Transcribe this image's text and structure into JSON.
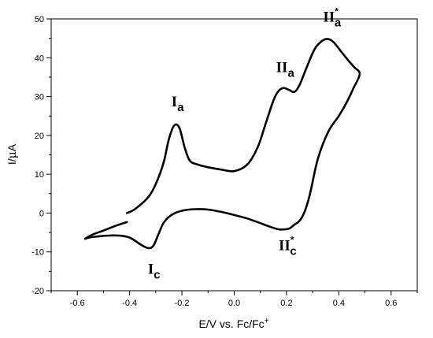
{
  "chart_data": {
    "type": "line",
    "title": "",
    "xlabel_parts": {
      "main": "E/V vs. Fc/Fc",
      "sup": "+"
    },
    "ylabel_parts": {
      "before": "I/",
      "mu": "μ",
      "after": "A"
    },
    "xlim": [
      -0.7,
      0.7
    ],
    "ylim": [
      -20,
      50
    ],
    "x_ticks": [
      -0.6,
      -0.4,
      -0.2,
      0.0,
      0.2,
      0.4,
      0.6
    ],
    "x_tick_labels": [
      "-0.6",
      "-0.4",
      "-0.2",
      "0.0",
      "0.2",
      "0.4",
      "0.6"
    ],
    "y_ticks": [
      -20,
      -10,
      0,
      10,
      20,
      30,
      40,
      50
    ],
    "y_tick_labels": [
      "-20",
      "-10",
      "0",
      "10",
      "20",
      "30",
      "40",
      "50"
    ],
    "grid": false,
    "legend": "none",
    "line_color": "#000000",
    "series": [
      {
        "x": [
          -0.41,
          -0.38,
          -0.33,
          -0.3,
          -0.27,
          -0.25,
          -0.23,
          -0.21,
          -0.19,
          -0.17,
          -0.14,
          -0.1,
          -0.05,
          0.0,
          0.05,
          0.09,
          0.12,
          0.15,
          0.17,
          0.19,
          0.21,
          0.23,
          0.25,
          0.28,
          0.31,
          0.34,
          0.36,
          0.38,
          0.41,
          0.44,
          0.46,
          0.48,
          0.455,
          0.43,
          0.4,
          0.36,
          0.32,
          0.29,
          0.27,
          0.25,
          0.23,
          0.21,
          0.19,
          0.17,
          0.14,
          0.1,
          0.05,
          0.0,
          -0.05,
          -0.1,
          -0.15,
          -0.2,
          -0.24,
          -0.27,
          -0.29,
          -0.31,
          -0.33,
          -0.36,
          -0.4,
          -0.44,
          -0.48,
          -0.52,
          -0.555,
          -0.57,
          -0.54,
          -0.5,
          -0.45,
          -0.41
        ],
        "y": [
          0.0,
          1.0,
          4.0,
          7.5,
          13.0,
          19.0,
          22.5,
          22.0,
          17.0,
          13.5,
          12.5,
          11.8,
          11.2,
          10.8,
          12.5,
          17.0,
          23.0,
          29.0,
          31.5,
          32.2,
          31.7,
          31.2,
          33.0,
          38.0,
          42.5,
          44.5,
          44.8,
          44.0,
          41.5,
          39.0,
          37.5,
          35.8,
          32.0,
          28.5,
          25.0,
          21.0,
          14.0,
          5.0,
          0.5,
          -2.0,
          -3.0,
          -4.0,
          -4.2,
          -4.2,
          -3.6,
          -2.6,
          -1.4,
          -0.5,
          0.3,
          0.9,
          1.0,
          0.6,
          -0.5,
          -2.5,
          -5.5,
          -8.5,
          -9.0,
          -8.0,
          -6.3,
          -5.8,
          -5.8,
          -6.0,
          -6.3,
          -6.6,
          -5.5,
          -4.5,
          -3.2,
          -2.3
        ]
      }
    ],
    "annotations": [
      {
        "id": "Ia",
        "roman": "I",
        "sub": "a",
        "star": "",
        "x": -0.24,
        "y": 27.5
      },
      {
        "id": "IIa",
        "roman": "II",
        "sub": "a",
        "star": "",
        "x": 0.16,
        "y": 36.3
      },
      {
        "id": "II*a",
        "roman": "II",
        "sub": "a",
        "star": "*",
        "x": 0.34,
        "y": 49.3
      },
      {
        "id": "Ic",
        "roman": "I",
        "sub": "c",
        "star": "",
        "x": -0.33,
        "y": -15.6
      },
      {
        "id": "II*c",
        "roman": "II",
        "sub": "c",
        "star": "*",
        "x": 0.17,
        "y": -9.5
      }
    ]
  }
}
